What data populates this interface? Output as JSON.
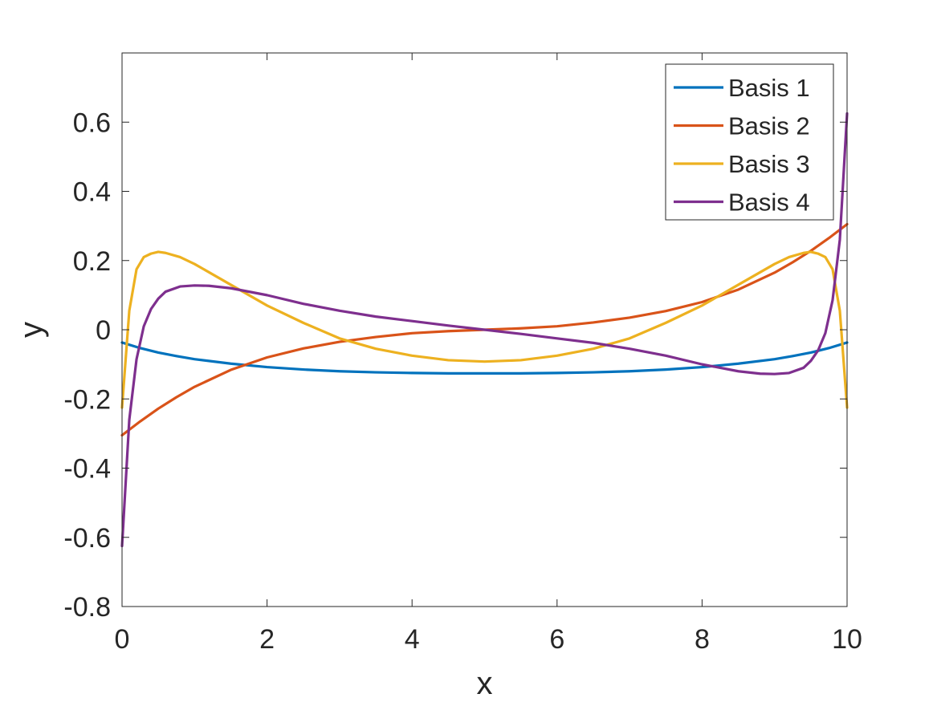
{
  "chart_data": {
    "type": "line",
    "title": "",
    "xlabel": "x",
    "ylabel": "y",
    "xlim": [
      0,
      10
    ],
    "ylim": [
      -0.8,
      0.8
    ],
    "xticks": [
      0,
      2,
      4,
      6,
      8,
      10
    ],
    "xtick_labels": [
      "0",
      "2",
      "4",
      "6",
      "8",
      "10"
    ],
    "yticks": [
      -0.8,
      -0.6,
      -0.4,
      -0.2,
      0,
      0.2,
      0.4,
      0.6
    ],
    "ytick_labels": [
      "-0.8",
      "-0.6",
      "-0.4",
      "-0.2",
      "0",
      "0.2",
      "0.4",
      "0.6"
    ],
    "grid": false,
    "legend_position": "top-right",
    "series": [
      {
        "name": "Basis 1",
        "color": "#0072BD",
        "x": [
          0,
          0.25,
          0.5,
          0.75,
          1,
          1.5,
          2,
          2.5,
          3,
          3.5,
          4,
          4.5,
          5,
          5.5,
          6,
          6.5,
          7,
          7.5,
          8,
          8.5,
          9,
          9.25,
          9.5,
          9.75,
          10
        ],
        "y": [
          -0.037,
          -0.053,
          -0.066,
          -0.076,
          -0.085,
          -0.098,
          -0.108,
          -0.115,
          -0.12,
          -0.123,
          -0.125,
          -0.126,
          -0.126,
          -0.126,
          -0.125,
          -0.123,
          -0.12,
          -0.115,
          -0.108,
          -0.098,
          -0.085,
          -0.076,
          -0.066,
          -0.053,
          -0.037
        ]
      },
      {
        "name": "Basis 2",
        "color": "#D95319",
        "x": [
          0,
          0.25,
          0.5,
          0.75,
          1,
          1.5,
          2,
          2.5,
          3,
          3.5,
          4,
          4.5,
          5,
          5.5,
          6,
          6.5,
          7,
          7.5,
          8,
          8.5,
          9,
          9.25,
          9.5,
          9.75,
          10
        ],
        "y": [
          -0.305,
          -0.265,
          -0.228,
          -0.195,
          -0.165,
          -0.116,
          -0.08,
          -0.054,
          -0.035,
          -0.021,
          -0.01,
          -0.004,
          0,
          0.004,
          0.01,
          0.021,
          0.035,
          0.054,
          0.08,
          0.116,
          0.165,
          0.195,
          0.228,
          0.265,
          0.305
        ]
      },
      {
        "name": "Basis 3",
        "color": "#EDB120",
        "x": [
          0,
          0.1,
          0.2,
          0.3,
          0.4,
          0.5,
          0.6,
          0.8,
          1,
          1.5,
          2,
          2.5,
          3,
          3.5,
          4,
          4.5,
          5,
          5.5,
          6,
          6.5,
          7,
          7.5,
          8,
          8.5,
          9,
          9.2,
          9.4,
          9.5,
          9.6,
          9.7,
          9.8,
          9.9,
          10
        ],
        "y": [
          -0.225,
          0.055,
          0.175,
          0.21,
          0.22,
          0.225,
          0.222,
          0.21,
          0.19,
          0.13,
          0.07,
          0.02,
          -0.025,
          -0.055,
          -0.075,
          -0.088,
          -0.092,
          -0.088,
          -0.075,
          -0.055,
          -0.025,
          0.02,
          0.07,
          0.13,
          0.19,
          0.21,
          0.222,
          0.225,
          0.22,
          0.21,
          0.175,
          0.055,
          -0.225
        ]
      },
      {
        "name": "Basis 4",
        "color": "#7E2F8E",
        "x": [
          0,
          0.1,
          0.2,
          0.3,
          0.4,
          0.5,
          0.6,
          0.8,
          1,
          1.2,
          1.5,
          2,
          2.5,
          3,
          3.5,
          4,
          4.5,
          5,
          5.5,
          6,
          6.5,
          7,
          7.5,
          8,
          8.5,
          8.8,
          9,
          9.2,
          9.4,
          9.5,
          9.6,
          9.7,
          9.8,
          9.9,
          10
        ],
        "y": [
          -0.625,
          -0.26,
          -0.085,
          0.01,
          0.06,
          0.09,
          0.11,
          0.125,
          0.128,
          0.127,
          0.12,
          0.1,
          0.075,
          0.055,
          0.038,
          0.025,
          0.012,
          0,
          -0.012,
          -0.025,
          -0.038,
          -0.055,
          -0.075,
          -0.1,
          -0.12,
          -0.127,
          -0.128,
          -0.125,
          -0.11,
          -0.09,
          -0.06,
          -0.01,
          0.085,
          0.26,
          0.625
        ]
      }
    ]
  }
}
